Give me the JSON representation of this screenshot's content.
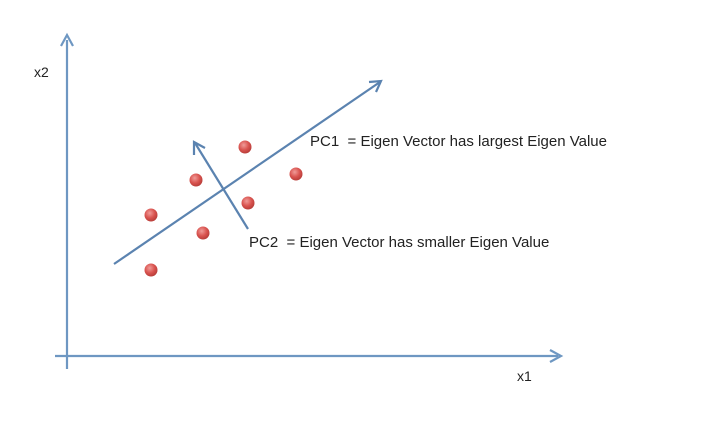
{
  "diagram": {
    "axes": {
      "x_label": "x1",
      "y_label": "x2"
    },
    "pc1": {
      "label": "PC1  = Eigen Vector has largest Eigen Value"
    },
    "pc2": {
      "label": "PC2  = Eigen Vector has smaller Eigen Value"
    }
  },
  "colors": {
    "axis": "#6e97c2",
    "vector": "#5b83b0",
    "point_fill": "#d9534f",
    "point_fill_light": "#ec8a86",
    "text": "#222222"
  }
}
